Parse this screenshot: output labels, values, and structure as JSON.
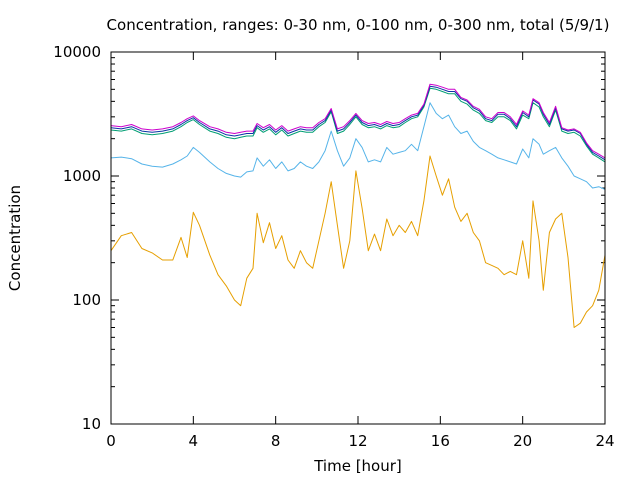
{
  "chart_data": {
    "type": "line",
    "title": "Concentration, ranges: 0-30 nm, 0-100 nm, 0-300 nm, total (5/9/1)",
    "xlabel": "Time [hour]",
    "ylabel": "Concentration",
    "xlim": [
      0,
      24
    ],
    "ylim": [
      10,
      10000
    ],
    "yscale": "log",
    "grid": false,
    "legend": "none",
    "xticks": [
      "0",
      "4",
      "8",
      "12",
      "16",
      "20",
      "24"
    ],
    "yticks": [
      "10",
      "100",
      "1000",
      "10000"
    ],
    "series": [
      {
        "color": "#e69f00",
        "x": [
          0,
          0.5,
          1,
          1.5,
          2,
          2.5,
          3,
          3.4,
          3.7,
          4,
          4.3,
          4.8,
          5.2,
          5.6,
          6,
          6.3,
          6.6,
          6.9,
          7.1,
          7.4,
          7.7,
          8,
          8.3,
          8.6,
          8.9,
          9.2,
          9.5,
          9.8,
          10.1,
          10.4,
          10.7,
          11,
          11.3,
          11.6,
          11.9,
          12.2,
          12.5,
          12.8,
          13.1,
          13.4,
          13.7,
          14,
          14.3,
          14.6,
          14.9,
          15.2,
          15.5,
          15.8,
          16.1,
          16.4,
          16.7,
          17,
          17.3,
          17.6,
          17.9,
          18.2,
          18.5,
          18.8,
          19.1,
          19.4,
          19.7,
          20,
          20.3,
          20.5,
          20.8,
          21,
          21.3,
          21.6,
          21.9,
          22.2,
          22.5,
          22.8,
          23.1,
          23.4,
          23.7,
          24
        ],
        "values": [
          250,
          330,
          350,
          260,
          240,
          210,
          210,
          320,
          220,
          510,
          400,
          230,
          160,
          130,
          100,
          90,
          150,
          180,
          500,
          290,
          420,
          260,
          330,
          210,
          180,
          250,
          200,
          180,
          300,
          500,
          900,
          400,
          180,
          300,
          1100,
          550,
          250,
          340,
          250,
          450,
          330,
          400,
          350,
          430,
          330,
          630,
          1450,
          1000,
          700,
          950,
          560,
          430,
          500,
          350,
          300,
          200,
          190,
          180,
          160,
          170,
          160,
          300,
          150,
          630,
          300,
          120,
          350,
          450,
          500,
          220,
          60,
          65,
          80,
          90,
          120,
          230
        ]
      },
      {
        "color": "#56b4e9",
        "x": [
          0,
          0.5,
          1,
          1.5,
          2,
          2.5,
          3,
          3.4,
          3.7,
          4,
          4.3,
          4.8,
          5.2,
          5.6,
          6,
          6.3,
          6.6,
          6.9,
          7.1,
          7.4,
          7.7,
          8,
          8.3,
          8.6,
          8.9,
          9.2,
          9.5,
          9.8,
          10.1,
          10.4,
          10.7,
          11,
          11.3,
          11.6,
          11.9,
          12.2,
          12.5,
          12.8,
          13.1,
          13.4,
          13.7,
          14,
          14.3,
          14.6,
          14.9,
          15.2,
          15.5,
          15.8,
          16.1,
          16.4,
          16.7,
          17,
          17.3,
          17.6,
          17.9,
          18.2,
          18.5,
          18.8,
          19.1,
          19.4,
          19.7,
          20,
          20.3,
          20.5,
          20.8,
          21,
          21.3,
          21.6,
          21.9,
          22.2,
          22.5,
          22.8,
          23.1,
          23.4,
          23.7,
          24
        ],
        "values": [
          1400,
          1420,
          1380,
          1250,
          1200,
          1180,
          1250,
          1350,
          1450,
          1700,
          1550,
          1300,
          1150,
          1050,
          1000,
          980,
          1080,
          1100,
          1400,
          1200,
          1350,
          1150,
          1300,
          1100,
          1150,
          1300,
          1200,
          1150,
          1300,
          1600,
          2300,
          1600,
          1200,
          1400,
          2000,
          1700,
          1300,
          1350,
          1300,
          1700,
          1500,
          1550,
          1600,
          1800,
          1600,
          2500,
          3900,
          3200,
          2900,
          3100,
          2500,
          2200,
          2300,
          1900,
          1700,
          1600,
          1500,
          1400,
          1350,
          1300,
          1250,
          1650,
          1400,
          2000,
          1800,
          1500,
          1600,
          1700,
          1400,
          1200,
          1000,
          950,
          900,
          800,
          820,
          780
        ]
      },
      {
        "color": "#009e73",
        "x": [
          0,
          0.5,
          1,
          1.5,
          2,
          2.5,
          3,
          3.4,
          3.7,
          4,
          4.3,
          4.8,
          5.2,
          5.6,
          6,
          6.3,
          6.6,
          6.9,
          7.1,
          7.4,
          7.7,
          8,
          8.3,
          8.6,
          8.9,
          9.2,
          9.5,
          9.8,
          10.1,
          10.4,
          10.7,
          11,
          11.3,
          11.6,
          11.9,
          12.2,
          12.5,
          12.8,
          13.1,
          13.4,
          13.7,
          14,
          14.3,
          14.6,
          14.9,
          15.2,
          15.5,
          15.8,
          16.1,
          16.4,
          16.7,
          17,
          17.3,
          17.6,
          17.9,
          18.2,
          18.5,
          18.8,
          19.1,
          19.4,
          19.7,
          20,
          20.3,
          20.5,
          20.8,
          21,
          21.3,
          21.6,
          21.9,
          22.2,
          22.5,
          22.8,
          23.1,
          23.4,
          23.7,
          24
        ],
        "values": [
          2350,
          2300,
          2400,
          2200,
          2150,
          2200,
          2300,
          2500,
          2700,
          2850,
          2600,
          2300,
          2200,
          2050,
          2000,
          2050,
          2100,
          2100,
          2450,
          2250,
          2400,
          2150,
          2350,
          2100,
          2200,
          2300,
          2250,
          2250,
          2500,
          2700,
          3300,
          2200,
          2300,
          2600,
          3000,
          2600,
          2450,
          2500,
          2400,
          2550,
          2450,
          2500,
          2700,
          2900,
          3000,
          3600,
          5100,
          5000,
          4800,
          4600,
          4600,
          4000,
          3800,
          3400,
          3200,
          2800,
          2700,
          3000,
          3000,
          2800,
          2400,
          3100,
          2900,
          3900,
          3600,
          3000,
          2500,
          3400,
          2300,
          2200,
          2250,
          2100,
          1750,
          1500,
          1400,
          1300
        ]
      },
      {
        "color": "#0b33a5",
        "x": [
          0,
          0.5,
          1,
          1.5,
          2,
          2.5,
          3,
          3.4,
          3.7,
          4,
          4.3,
          4.8,
          5.2,
          5.6,
          6,
          6.3,
          6.6,
          6.9,
          7.1,
          7.4,
          7.7,
          8,
          8.3,
          8.6,
          8.9,
          9.2,
          9.5,
          9.8,
          10.1,
          10.4,
          10.7,
          11,
          11.3,
          11.6,
          11.9,
          12.2,
          12.5,
          12.8,
          13.1,
          13.4,
          13.7,
          14,
          14.3,
          14.6,
          14.9,
          15.2,
          15.5,
          15.8,
          16.1,
          16.4,
          16.7,
          17,
          17.3,
          17.6,
          17.9,
          18.2,
          18.5,
          18.8,
          19.1,
          19.4,
          19.7,
          20,
          20.3,
          20.5,
          20.8,
          21,
          21.3,
          21.6,
          21.9,
          22.2,
          22.5,
          22.8,
          23.1,
          23.4,
          23.7,
          24
        ],
        "values": [
          2450,
          2400,
          2500,
          2300,
          2250,
          2300,
          2400,
          2600,
          2800,
          2950,
          2700,
          2400,
          2300,
          2150,
          2100,
          2150,
          2200,
          2200,
          2550,
          2350,
          2500,
          2250,
          2450,
          2200,
          2300,
          2400,
          2350,
          2350,
          2600,
          2800,
          3400,
          2300,
          2400,
          2700,
          3100,
          2700,
          2550,
          2600,
          2500,
          2650,
          2550,
          2600,
          2800,
          3000,
          3100,
          3700,
          5300,
          5200,
          5000,
          4800,
          4800,
          4200,
          4000,
          3550,
          3350,
          2900,
          2800,
          3150,
          3150,
          2900,
          2500,
          3250,
          3000,
          4100,
          3800,
          3150,
          2600,
          3550,
          2400,
          2300,
          2350,
          2200,
          1800,
          1550,
          1450,
          1350
        ]
      },
      {
        "color": "#cc00cc",
        "x": [
          0,
          0.5,
          1,
          1.5,
          2,
          2.5,
          3,
          3.4,
          3.7,
          4,
          4.3,
          4.8,
          5.2,
          5.6,
          6,
          6.3,
          6.6,
          6.9,
          7.1,
          7.4,
          7.7,
          8,
          8.3,
          8.6,
          8.9,
          9.2,
          9.5,
          9.8,
          10.1,
          10.4,
          10.7,
          11,
          11.3,
          11.6,
          11.9,
          12.2,
          12.5,
          12.8,
          13.1,
          13.4,
          13.7,
          14,
          14.3,
          14.6,
          14.9,
          15.2,
          15.5,
          15.8,
          16.1,
          16.4,
          16.7,
          17,
          17.3,
          17.6,
          17.9,
          18.2,
          18.5,
          18.8,
          19.1,
          19.4,
          19.7,
          20,
          20.3,
          20.5,
          20.8,
          21,
          21.3,
          21.6,
          21.9,
          22.2,
          22.5,
          22.8,
          23.1,
          23.4,
          23.7,
          24
        ],
        "values": [
          2550,
          2500,
          2600,
          2400,
          2350,
          2400,
          2500,
          2700,
          2900,
          3050,
          2800,
          2500,
          2400,
          2250,
          2200,
          2250,
          2300,
          2300,
          2650,
          2450,
          2600,
          2350,
          2550,
          2300,
          2400,
          2500,
          2450,
          2450,
          2700,
          2900,
          3500,
          2400,
          2500,
          2800,
          3200,
          2800,
          2650,
          2700,
          2600,
          2750,
          2650,
          2700,
          2900,
          3100,
          3200,
          3800,
          5500,
          5400,
          5200,
          5000,
          5000,
          4300,
          4100,
          3650,
          3450,
          3000,
          2900,
          3250,
          3250,
          3000,
          2600,
          3350,
          3100,
          4200,
          3900,
          3250,
          2700,
          3650,
          2450,
          2350,
          2400,
          2250,
          1850,
          1600,
          1500,
          1400
        ]
      }
    ]
  }
}
